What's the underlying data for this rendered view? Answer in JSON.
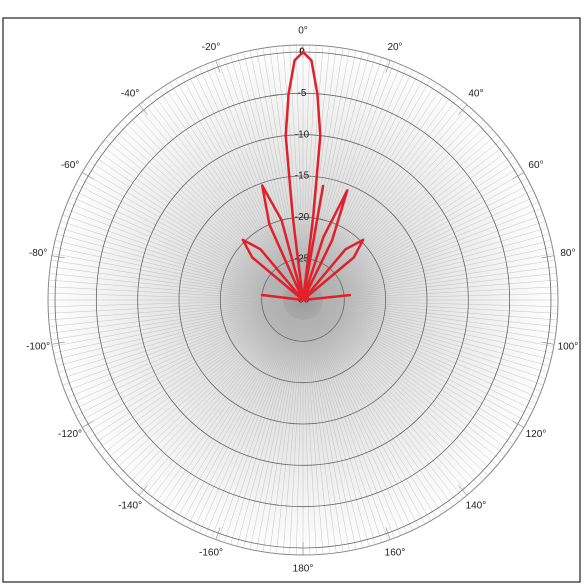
{
  "chart_data": {
    "type": "polar",
    "x": [
      -90,
      -83,
      -76,
      -56,
      -50,
      -45,
      -40,
      -30,
      -24,
      -19.6,
      -15,
      -11,
      -8,
      -7,
      -6,
      -4,
      -2,
      0,
      2,
      4,
      6,
      7,
      8,
      10,
      12,
      18,
      22,
      26,
      30,
      40,
      45,
      50,
      56,
      78,
      84,
      90
    ],
    "values": [
      -30,
      -25,
      -30,
      -30,
      -22,
      -19.7,
      -22,
      -30,
      -20,
      -15.3,
      -20,
      -30,
      -30,
      -20,
      -10,
      -5,
      -1,
      0,
      -1,
      -5,
      -10,
      -20,
      -30,
      -16,
      -30,
      -22,
      -15.7,
      -22,
      -30,
      -22,
      -19.7,
      -22,
      -30,
      -30,
      -24.3,
      -30
    ],
    "color": "#e0202a",
    "xlim": [
      -180,
      180
    ],
    "xticks": [
      {
        "value": -160,
        "label": "-160°"
      },
      {
        "value": -140,
        "label": "-140°"
      },
      {
        "value": -120,
        "label": "-120°"
      },
      {
        "value": -100,
        "label": "-100°"
      },
      {
        "value": -80,
        "label": "-80°"
      },
      {
        "value": -60,
        "label": "-60°"
      },
      {
        "value": -40,
        "label": "-40°"
      },
      {
        "value": -20,
        "label": "-20°"
      },
      {
        "value": 0,
        "label": "0°"
      },
      {
        "value": 20,
        "label": "20°"
      },
      {
        "value": 40,
        "label": "40°"
      },
      {
        "value": 60,
        "label": "60°"
      },
      {
        "value": 80,
        "label": "80°"
      },
      {
        "value": 100,
        "label": "100°"
      },
      {
        "value": 120,
        "label": "120°"
      },
      {
        "value": 140,
        "label": "140°"
      },
      {
        "value": 160,
        "label": "160°"
      },
      {
        "value": 180,
        "label": "180°"
      }
    ],
    "ylim": [
      -30,
      0
    ],
    "yticks": [
      0,
      -5,
      -10,
      -15,
      -20,
      -25,
      -30
    ],
    "grid": true
  }
}
